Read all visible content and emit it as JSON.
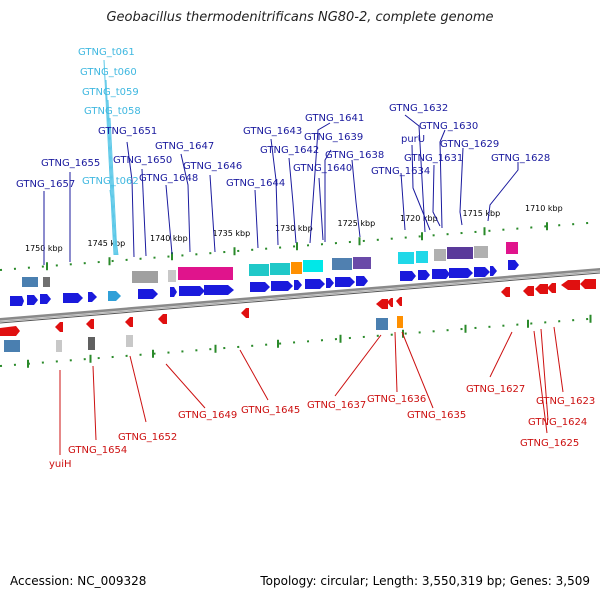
{
  "title": "Geobacillus thermodenitrificans NG80-2, complete genome",
  "accession": "Accession: NC_009328",
  "summary": "Topology: circular; Length: 3,550,319 bp; Genes: 3,509",
  "scale_labels": [
    "1750 kbp",
    "1745 kbp",
    "1740 kbp",
    "1735 kbp",
    "1730 kbp",
    "1725 kbp",
    "1720 kbp",
    "1715 kbp",
    "1710 kbp"
  ],
  "colors": {
    "forward": "#1a1adc",
    "reverse": "#e01010",
    "trna": "#5bc8e8",
    "backbone": "#808080",
    "tick": "#2a8a2a",
    "label_forward": "#1a1a9e",
    "label_reverse": "#cc1010",
    "label_trna": "#40b8e0"
  },
  "upper_labels": [
    "GTNG_t061",
    "GTNG_t060",
    "GTNG_t059",
    "GTNG_t058",
    "GTNG_1651",
    "GTNG_1655",
    "GTNG_1650",
    "GTNG_1647",
    "GTNG_1657",
    "GTNG_t062",
    "GTNG_1648",
    "GTNG_1646",
    "GTNG_1643",
    "GTNG_1641",
    "GTNG_1642",
    "GTNG_1639",
    "GTNG_1644",
    "GTNG_1640",
    "GTNG_1638",
    "GTNG_1632",
    "purU",
    "GTNG_1630",
    "GTNG_1629",
    "GTNG_1631",
    "GTNG_1628",
    "GTNG_1634"
  ],
  "lower_labels": [
    "GTNG_1649",
    "GTNG_1645",
    "GTNG_1637",
    "GTNG_1636",
    "GTNG_1635",
    "GTNG_1627",
    "GTNG_1623",
    "GTNG_1652",
    "GTNG_1624",
    "GTNG_1654",
    "GTNG_1625",
    "yuiH"
  ]
}
